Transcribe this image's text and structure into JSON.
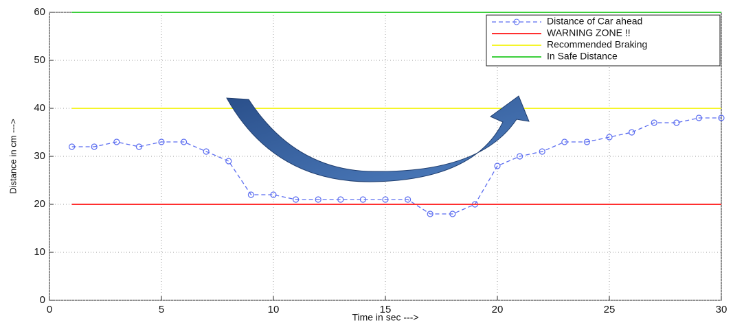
{
  "chart_data": {
    "type": "line",
    "x_label": "Time in sec --->",
    "y_label": "Distance in cm --->",
    "x": [
      1,
      2,
      3,
      4,
      5,
      6,
      7,
      8,
      9,
      10,
      11,
      12,
      13,
      14,
      15,
      16,
      17,
      18,
      19,
      20,
      21,
      22,
      23,
      24,
      25,
      26,
      27,
      28,
      29,
      30
    ],
    "series": [
      {
        "name": "Distance of Car ahead",
        "color": "#5a6cf0",
        "dashed": true,
        "marker": "o",
        "values": [
          32,
          32,
          33,
          32,
          33,
          33,
          31,
          29,
          22,
          22,
          21,
          21,
          21,
          21,
          21,
          21,
          18,
          18,
          20,
          28,
          30,
          31,
          33,
          33,
          34,
          35,
          37,
          37,
          38,
          38
        ]
      },
      {
        "name": "WARNING ZONE !!",
        "color": "#ff3030",
        "dashed": false,
        "values": [
          20,
          20,
          20,
          20,
          20,
          20,
          20,
          20,
          20,
          20,
          20,
          20,
          20,
          20,
          20,
          20,
          20,
          20,
          20,
          20,
          20,
          20,
          20,
          20,
          20,
          20,
          20,
          20,
          20,
          20
        ]
      },
      {
        "name": "Recommended Braking",
        "color": "#f5f52a",
        "dashed": false,
        "values": [
          40,
          40,
          40,
          40,
          40,
          40,
          40,
          40,
          40,
          40,
          40,
          40,
          40,
          40,
          40,
          40,
          40,
          40,
          40,
          40,
          40,
          40,
          40,
          40,
          40,
          40,
          40,
          40,
          40,
          40
        ]
      },
      {
        "name": "In Safe Distance",
        "color": "#3ccf3c",
        "dashed": false,
        "values": [
          60,
          60,
          60,
          60,
          60,
          60,
          60,
          60,
          60,
          60,
          60,
          60,
          60,
          60,
          60,
          60,
          60,
          60,
          60,
          60,
          60,
          60,
          60,
          60,
          60,
          60,
          60,
          60,
          60,
          60
        ]
      }
    ],
    "xlim": [
      0,
      30
    ],
    "xticks": [
      0,
      5,
      10,
      15,
      20,
      25,
      30
    ],
    "ylim": [
      0,
      60
    ],
    "yticks": [
      0,
      10,
      20,
      30,
      40,
      50,
      60
    ],
    "grid": true,
    "legend": "upper right"
  }
}
